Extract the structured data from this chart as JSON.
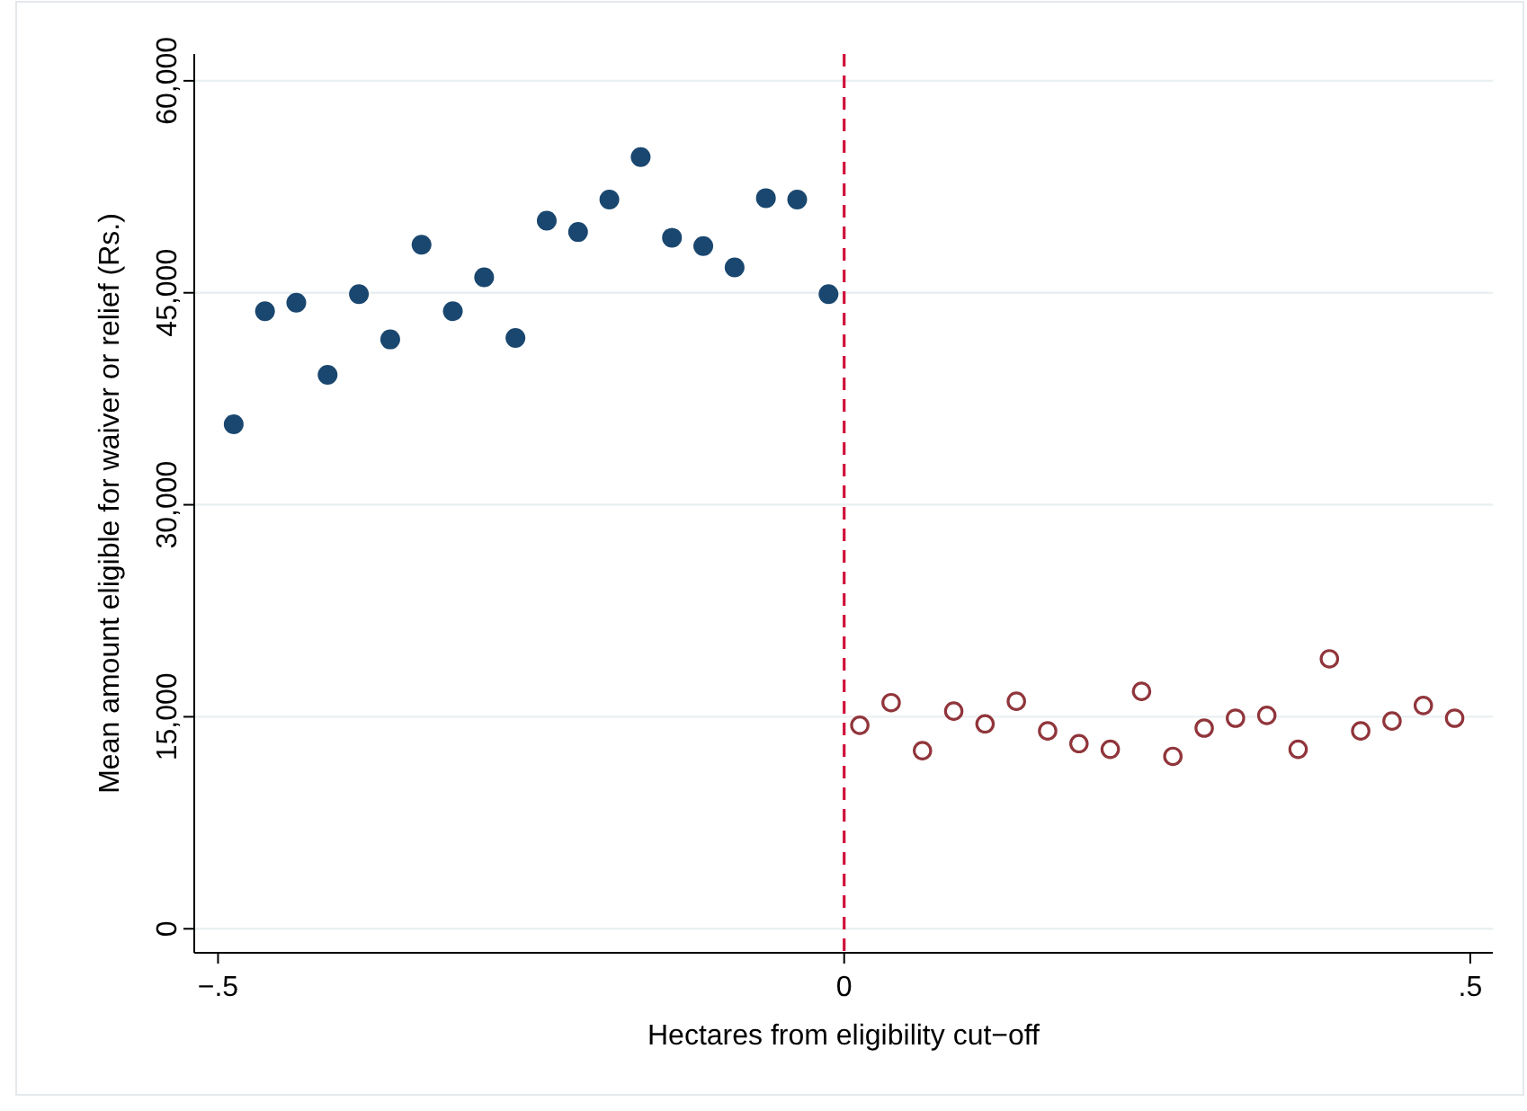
{
  "chart_data": {
    "type": "scatter",
    "xlabel": "Hectares from eligibility cut−off",
    "ylabel": "Mean amount eligible for waiver or relief (Rs.)",
    "xlim": [
      -0.519,
      0.518
    ],
    "ylim": [
      -1700,
      61900
    ],
    "xticks": [
      {
        "value": -0.5,
        "label": "−.5"
      },
      0,
      {
        "value": 0.5,
        "label": ".5"
      }
    ],
    "yticks": [
      0,
      {
        "value": 15000,
        "label": "15,000"
      },
      {
        "value": 30000,
        "label": "30,000"
      },
      {
        "value": 45000,
        "label": "45,000"
      },
      {
        "value": 60000,
        "label": "60,000"
      }
    ],
    "grid": "y",
    "marker": "circle",
    "ref_lines": [
      {
        "axis": "x",
        "value": 0,
        "color": "#d0103a",
        "line_style": "dashed"
      }
    ],
    "series": [
      {
        "color": "#1a476f",
        "x": [
          -0.4875,
          -0.4625,
          -0.4375,
          -0.4125,
          -0.3875,
          -0.3625,
          -0.3375,
          -0.3125,
          -0.2875,
          -0.2625,
          -0.2375,
          -0.2125,
          -0.1875,
          -0.1625,
          -0.1375,
          -0.1125,
          -0.0875,
          -0.0625,
          -0.0375,
          -0.0125
        ],
        "values": [
          35700,
          43700,
          44300,
          39200,
          44900,
          41700,
          48400,
          43700,
          46100,
          41800,
          50100,
          49300,
          51600,
          54600,
          48900,
          48300,
          46800,
          51700,
          51600,
          44900
        ]
      },
      {
        "color": "#90353b",
        "x": [
          0.0125,
          0.0375,
          0.0625,
          0.0875,
          0.1125,
          0.1375,
          0.1625,
          0.1875,
          0.2125,
          0.2375,
          0.2625,
          0.2875,
          0.3125,
          0.3375,
          0.3625,
          0.3875,
          0.4125,
          0.4375,
          0.4625,
          0.4875
        ],
        "values": [
          14400,
          16000,
          12600,
          15400,
          14500,
          16100,
          14000,
          13100,
          12700,
          16800,
          12200,
          14200,
          14900,
          15100,
          12700,
          19100,
          14000,
          14700,
          15800,
          14900
        ]
      }
    ]
  }
}
